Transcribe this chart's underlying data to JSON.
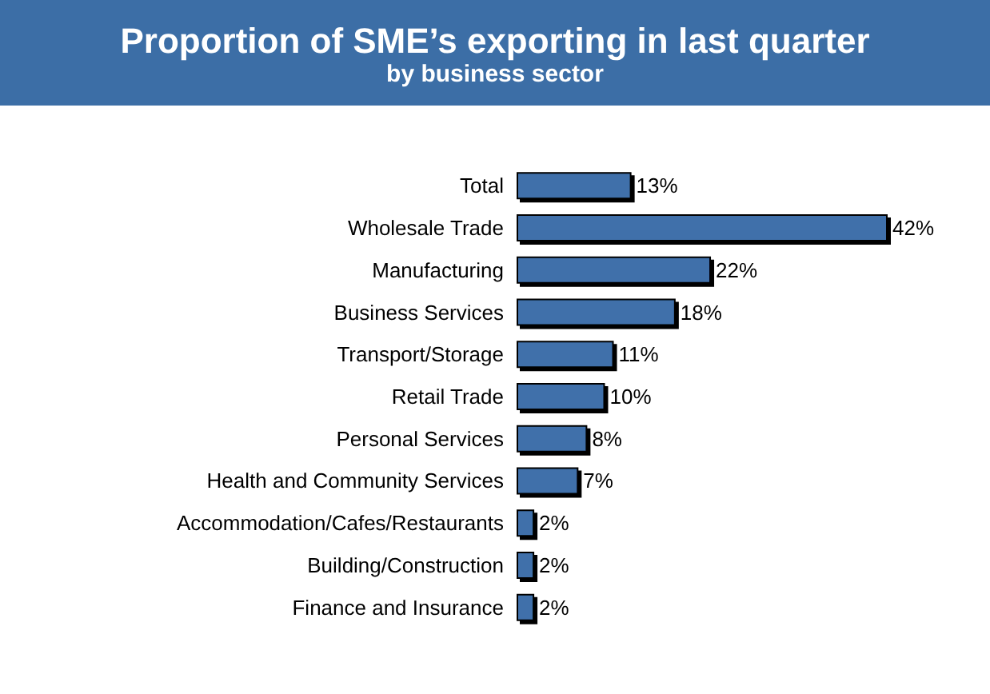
{
  "chart_data": {
    "type": "bar",
    "orientation": "horizontal",
    "title": "Proportion of SME’s exporting in last quarter",
    "subtitle": "by business sector",
    "categories": [
      "Total",
      "Wholesale Trade",
      "Manufacturing",
      "Business Services",
      "Transport/Storage",
      "Retail Trade",
      "Personal Services",
      "Health and Community Services",
      "Accommodation/Cafes/Restaurants",
      "Building/Construction",
      "Finance and Insurance"
    ],
    "values": [
      13,
      42,
      22,
      18,
      11,
      10,
      8,
      7,
      2,
      2,
      2
    ],
    "value_labels": [
      "13%",
      "42%",
      "22%",
      "18%",
      "11%",
      "10%",
      "8%",
      "7%",
      "2%",
      "2%",
      "2%"
    ],
    "color": "#3f6faa"
  }
}
